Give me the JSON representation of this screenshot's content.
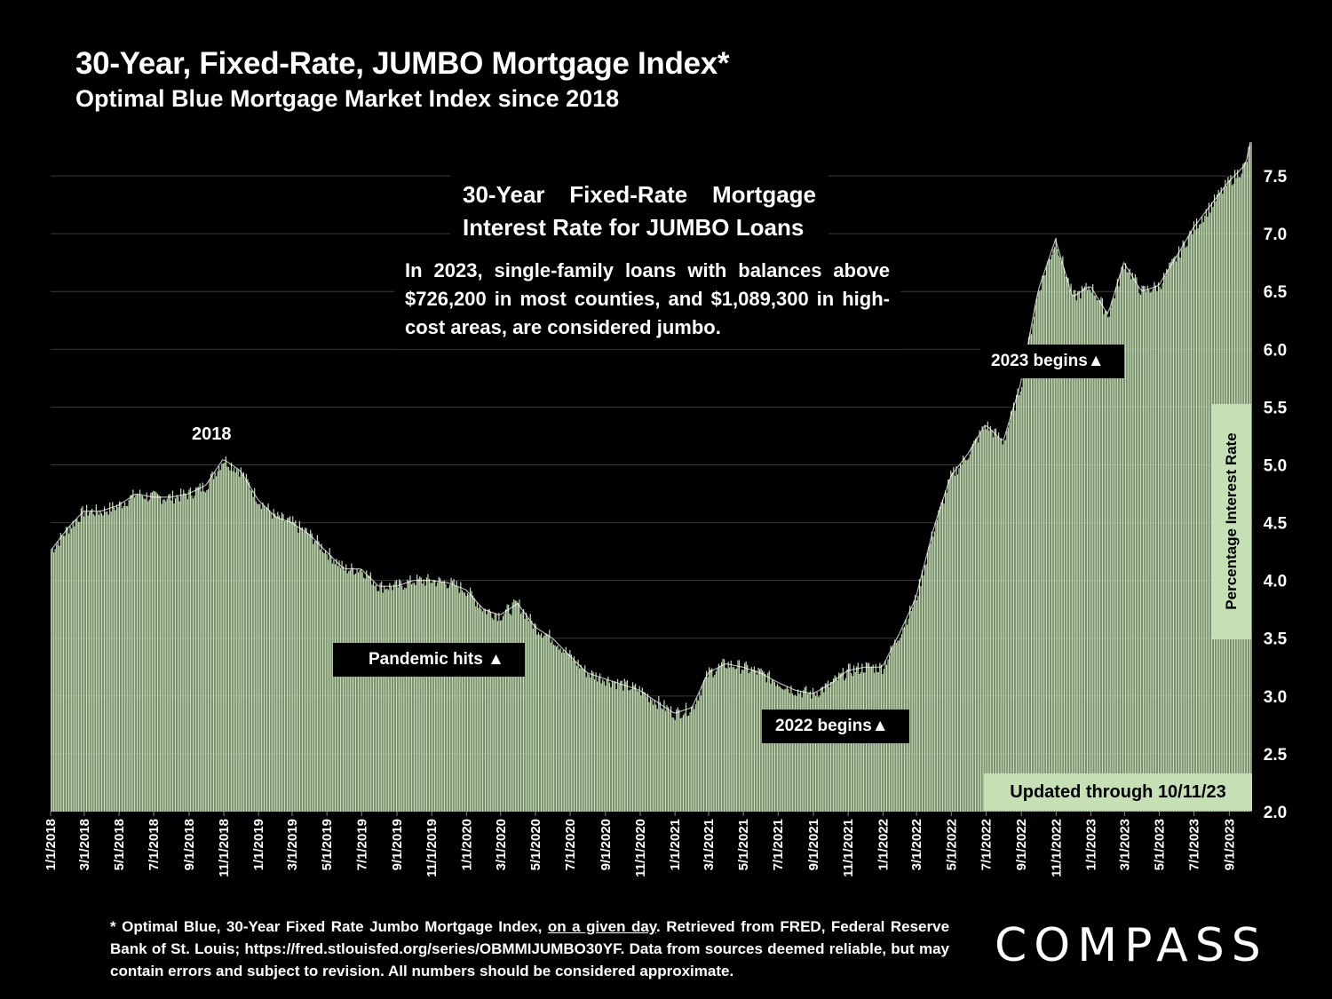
{
  "header": {
    "title": "30-Year, Fixed-Rate, JUMBO Mortgage Index*",
    "subtitle": "Optimal Blue Mortgage Market Index since 2018"
  },
  "annotations": {
    "box_title_line1": "30-Year Fixed-Rate Mortgage",
    "box_title_line2": "Interest Rate for JUMBO Loans",
    "note": "In 2023, single-family loans with balances above $726,200 in most counties, and $1,089,300 in high-cost areas, are considered jumbo.",
    "label_2018": "2018",
    "pandemic": "Pandemic hits ▲",
    "begins_2022": "2022 begins▲",
    "begins_2023": "2023 begins▲",
    "updated": "Updated through 10/11/23"
  },
  "footnote": {
    "part1": "* Optimal Blue, 30-Year Fixed Rate Jumbo Mortgage Index, ",
    "underlined": "on a given day",
    "part2": ". Retrieved from FRED, Federal Reserve Bank of St. Louis; https://fred.stlouisfed.org/series/OBMMIJUMBO30YF. Data from sources deemed reliable, but may contain errors and subject to revision. All numbers should be considered approximate."
  },
  "logo": "COMPASS",
  "colors": {
    "bar": "#c5e0b4",
    "background": "#000000",
    "grid": "#3a3a3a"
  },
  "chart_data": {
    "type": "bar",
    "ylabel": "Percentage Interest Rate",
    "ylim": [
      2.0,
      7.9
    ],
    "yticks": [
      "2.0",
      "2.5",
      "3.0",
      "3.5",
      "4.0",
      "4.5",
      "5.0",
      "5.5",
      "6.0",
      "6.5",
      "7.0",
      "7.5"
    ],
    "x_range": [
      "2018-01-01",
      "2023-10-11"
    ],
    "xtick_labels": [
      "1/1/2018",
      "3/1/2018",
      "5/1/2018",
      "7/1/2018",
      "9/1/2018",
      "11/1/2018",
      "1/1/2019",
      "3/1/2019",
      "5/1/2019",
      "7/1/2019",
      "9/1/2019",
      "11/1/2019",
      "1/1/2020",
      "3/1/2020",
      "5/1/2020",
      "7/1/2020",
      "9/1/2020",
      "11/1/2020",
      "1/1/2021",
      "3/1/2021",
      "5/1/2021",
      "7/1/2021",
      "9/1/2021",
      "11/1/2021",
      "1/1/2022",
      "3/1/2022",
      "5/1/2022",
      "7/1/2022",
      "9/1/2022",
      "11/1/2022",
      "1/1/2023",
      "3/1/2023",
      "5/1/2023",
      "7/1/2023",
      "9/1/2023"
    ],
    "grid": true,
    "series": [
      {
        "x": [
          "2018-01-01",
          "2018-02-01",
          "2018-03-01",
          "2018-04-01",
          "2018-05-01",
          "2018-06-01",
          "2018-07-01",
          "2018-08-01",
          "2018-09-01",
          "2018-10-01",
          "2018-11-01",
          "2018-12-01",
          "2019-01-01",
          "2019-02-01",
          "2019-03-01",
          "2019-04-01",
          "2019-05-01",
          "2019-06-01",
          "2019-07-01",
          "2019-08-01",
          "2019-09-01",
          "2019-10-01",
          "2019-11-01",
          "2019-12-01",
          "2020-01-01",
          "2020-02-01",
          "2020-03-01",
          "2020-04-01",
          "2020-05-01",
          "2020-06-01",
          "2020-07-01",
          "2020-08-01",
          "2020-09-01",
          "2020-10-01",
          "2020-11-01",
          "2020-12-01",
          "2021-01-01",
          "2021-02-01",
          "2021-03-01",
          "2021-04-01",
          "2021-05-01",
          "2021-06-01",
          "2021-07-01",
          "2021-08-01",
          "2021-09-01",
          "2021-10-01",
          "2021-11-01",
          "2021-12-01",
          "2022-01-01",
          "2022-02-01",
          "2022-03-01",
          "2022-04-01",
          "2022-05-01",
          "2022-06-01",
          "2022-07-01",
          "2022-08-01",
          "2022-09-01",
          "2022-10-01",
          "2022-11-01",
          "2022-12-01",
          "2023-01-01",
          "2023-02-01",
          "2023-03-01",
          "2023-04-01",
          "2023-05-01",
          "2023-06-01",
          "2023-07-01",
          "2023-08-01",
          "2023-09-01",
          "2023-10-01",
          "2023-10-11"
        ],
        "values": [
          4.25,
          4.45,
          4.6,
          4.6,
          4.65,
          4.75,
          4.72,
          4.72,
          4.75,
          4.82,
          5.05,
          4.95,
          4.7,
          4.55,
          4.5,
          4.4,
          4.25,
          4.1,
          4.1,
          3.95,
          3.95,
          4.0,
          4.0,
          3.98,
          3.92,
          3.75,
          3.7,
          3.8,
          3.6,
          3.5,
          3.35,
          3.2,
          3.15,
          3.1,
          3.05,
          2.95,
          2.85,
          2.9,
          3.2,
          3.28,
          3.25,
          3.2,
          3.12,
          3.05,
          3.02,
          3.1,
          3.22,
          3.25,
          3.25,
          3.55,
          3.85,
          4.45,
          4.9,
          5.1,
          5.35,
          5.2,
          5.7,
          6.5,
          6.95,
          6.45,
          6.55,
          6.3,
          6.75,
          6.5,
          6.55,
          6.8,
          7.05,
          7.25,
          7.45,
          7.6,
          7.85
        ]
      }
    ]
  }
}
